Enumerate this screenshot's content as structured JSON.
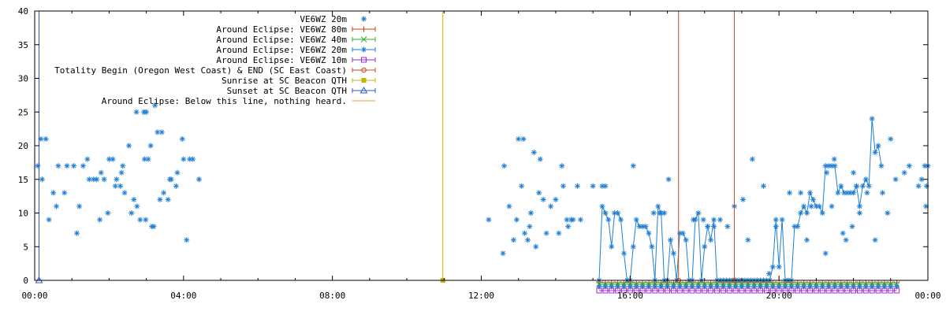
{
  "chart_data": {
    "type": "scatter",
    "title": "",
    "xlabel": "",
    "ylabel": "",
    "xlim": [
      "00:00",
      "24:00"
    ],
    "ylim": [
      0,
      40
    ],
    "grid": false,
    "legend_placement": "top-center",
    "x_ticks": [
      "00:00",
      "04:00",
      "08:00",
      "12:00",
      "16:00",
      "20:00",
      "00:00"
    ],
    "y_ticks": [
      "0",
      "5",
      "10",
      "15",
      "20",
      "25",
      "30",
      "35",
      "40"
    ],
    "series": [
      {
        "name": "VE6WZ 20m",
        "style": "points",
        "marker": "star",
        "color": "#1f7fd4",
        "points": [
          [
            "00:05",
            17
          ],
          [
            "00:10",
            21
          ],
          [
            "00:12",
            15
          ],
          [
            "00:18",
            21
          ],
          [
            "00:23",
            9
          ],
          [
            "00:30",
            13
          ],
          [
            "00:35",
            11
          ],
          [
            "00:38",
            17
          ],
          [
            "00:48",
            13
          ],
          [
            "00:52",
            17
          ],
          [
            "01:03",
            17
          ],
          [
            "01:08",
            7
          ],
          [
            "01:12",
            11
          ],
          [
            "01:18",
            17
          ],
          [
            "01:25",
            18
          ],
          [
            "01:28",
            15
          ],
          [
            "01:35",
            15
          ],
          [
            "01:40",
            15
          ],
          [
            "01:45",
            9
          ],
          [
            "01:47",
            16
          ],
          [
            "01:52",
            15
          ],
          [
            "01:58",
            10
          ],
          [
            "02:00",
            18
          ],
          [
            "02:06",
            18
          ],
          [
            "02:10",
            14
          ],
          [
            "02:12",
            15
          ],
          [
            "02:18",
            14
          ],
          [
            "02:20",
            16
          ],
          [
            "02:22",
            17
          ],
          [
            "02:25",
            13
          ],
          [
            "02:32",
            20
          ],
          [
            "02:36",
            10
          ],
          [
            "02:40",
            12
          ],
          [
            "02:44",
            25
          ],
          [
            "02:45",
            11
          ],
          [
            "02:50",
            9
          ],
          [
            "02:56",
            25
          ],
          [
            "02:57",
            18
          ],
          [
            "02:59",
            9
          ],
          [
            "03:00",
            25
          ],
          [
            "03:03",
            18
          ],
          [
            "03:07",
            20
          ],
          [
            "03:09",
            8
          ],
          [
            "03:12",
            8
          ],
          [
            "03:14",
            26
          ],
          [
            "03:18",
            22
          ],
          [
            "03:22",
            12
          ],
          [
            "03:25",
            22
          ],
          [
            "03:28",
            13
          ],
          [
            "03:35",
            12
          ],
          [
            "03:38",
            15
          ],
          [
            "03:40",
            15
          ],
          [
            "03:48",
            14
          ],
          [
            "03:50",
            16
          ],
          [
            "03:58",
            21
          ],
          [
            "04:00",
            18
          ],
          [
            "04:05",
            6
          ],
          [
            "04:10",
            18
          ],
          [
            "04:15",
            18
          ],
          [
            "04:25",
            15
          ],
          [
            "12:12",
            9
          ],
          [
            "12:35",
            4
          ],
          [
            "12:37",
            17
          ],
          [
            "12:45",
            11
          ],
          [
            "12:52",
            6
          ],
          [
            "12:57",
            9
          ],
          [
            "13:00",
            21
          ],
          [
            "13:05",
            14
          ],
          [
            "13:08",
            21
          ],
          [
            "13:10",
            7
          ],
          [
            "13:15",
            6
          ],
          [
            "13:18",
            8
          ],
          [
            "13:20",
            10
          ],
          [
            "13:25",
            19
          ],
          [
            "13:28",
            5
          ],
          [
            "13:33",
            13
          ],
          [
            "13:35",
            18
          ],
          [
            "13:40",
            12
          ],
          [
            "13:45",
            7
          ],
          [
            "13:52",
            11
          ],
          [
            "14:00",
            12
          ],
          [
            "14:05",
            7
          ],
          [
            "14:10",
            17
          ],
          [
            "14:12",
            14
          ],
          [
            "14:18",
            9
          ],
          [
            "14:20",
            8
          ],
          [
            "14:25",
            9
          ],
          [
            "14:28",
            9
          ],
          [
            "14:35",
            14
          ],
          [
            "14:40",
            9
          ],
          [
            "15:00",
            14
          ],
          [
            "15:15",
            14
          ],
          [
            "15:20",
            14
          ],
          [
            "16:05",
            17
          ],
          [
            "16:38",
            10
          ],
          [
            "16:48",
            10
          ],
          [
            "16:55",
            10
          ],
          [
            "17:02",
            15
          ],
          [
            "17:42",
            9
          ],
          [
            "17:58",
            9
          ],
          [
            "18:05",
            8
          ],
          [
            "18:15",
            8
          ],
          [
            "18:25",
            9
          ],
          [
            "18:37",
            8
          ],
          [
            "18:48",
            11
          ],
          [
            "19:02",
            12
          ],
          [
            "19:10",
            6
          ],
          [
            "19:17",
            18
          ],
          [
            "19:35",
            14
          ],
          [
            "19:44",
            1
          ],
          [
            "19:55",
            8
          ],
          [
            "20:17",
            13
          ],
          [
            "20:35",
            13
          ],
          [
            "20:45",
            6
          ],
          [
            "20:52",
            11
          ],
          [
            "21:15",
            4
          ],
          [
            "21:17",
            16
          ],
          [
            "21:25",
            11
          ],
          [
            "21:29",
            18
          ],
          [
            "21:43",
            7
          ],
          [
            "21:48",
            6
          ],
          [
            "21:58",
            8
          ],
          [
            "22:00",
            16
          ],
          [
            "22:05",
            14
          ],
          [
            "22:10",
            10
          ],
          [
            "22:22",
            13
          ],
          [
            "22:35",
            6
          ],
          [
            "22:47",
            13
          ],
          [
            "22:55",
            10
          ],
          [
            "23:00",
            21
          ],
          [
            "23:08",
            15
          ],
          [
            "23:22",
            16
          ],
          [
            "23:30",
            17
          ],
          [
            "23:45",
            14
          ],
          [
            "23:50",
            15
          ],
          [
            "23:55",
            17
          ],
          [
            "23:57",
            11
          ],
          [
            "23:58",
            14
          ],
          [
            "24:00",
            17
          ]
        ]
      },
      {
        "name": "Around Eclipse: VE6WZ 80m",
        "style": "linespoints",
        "marker": "plus",
        "color": "#d33b1a",
        "points": []
      },
      {
        "name": "Around Eclipse: VE6WZ 40m",
        "style": "linespoints",
        "marker": "cross",
        "color": "#29b13a",
        "points": []
      },
      {
        "name": "Around Eclipse: VE6WZ 20m",
        "style": "linespoints",
        "marker": "star",
        "color": "#1f7fd4",
        "points": [
          [
            "15:10",
            0
          ],
          [
            "15:15",
            11
          ],
          [
            "15:20",
            10
          ],
          [
            "15:25",
            9
          ],
          [
            "15:30",
            5
          ],
          [
            "15:35",
            10
          ],
          [
            "15:40",
            10
          ],
          [
            "15:45",
            9
          ],
          [
            "15:50",
            4
          ],
          [
            "15:55",
            0
          ],
          [
            "16:00",
            0
          ],
          [
            "16:05",
            5
          ],
          [
            "16:10",
            9
          ],
          [
            "16:15",
            8
          ],
          [
            "16:20",
            8
          ],
          [
            "16:25",
            8
          ],
          [
            "16:30",
            7
          ],
          [
            "16:35",
            5
          ],
          [
            "16:40",
            0
          ],
          [
            "16:45",
            11
          ],
          [
            "16:50",
            10
          ],
          [
            "16:55",
            0
          ],
          [
            "17:00",
            0
          ],
          [
            "17:05",
            6
          ],
          [
            "17:10",
            4
          ],
          [
            "17:15",
            0
          ],
          [
            "17:20",
            7
          ],
          [
            "17:25",
            7
          ],
          [
            "17:30",
            6
          ],
          [
            "17:35",
            0
          ],
          [
            "17:40",
            0
          ],
          [
            "17:45",
            9
          ],
          [
            "17:50",
            10
          ],
          [
            "17:55",
            0
          ],
          [
            "18:00",
            5
          ],
          [
            "18:05",
            8
          ],
          [
            "18:10",
            6
          ],
          [
            "18:15",
            9
          ],
          [
            "18:20",
            0
          ],
          [
            "18:25",
            0
          ],
          [
            "18:30",
            0
          ],
          [
            "18:35",
            0
          ],
          [
            "18:40",
            0
          ],
          [
            "18:45",
            0
          ],
          [
            "18:50",
            0
          ],
          [
            "18:55",
            0
          ],
          [
            "19:00",
            0
          ],
          [
            "19:05",
            0
          ],
          [
            "19:10",
            0
          ],
          [
            "19:15",
            0
          ],
          [
            "19:20",
            0
          ],
          [
            "19:25",
            0
          ],
          [
            "19:30",
            0
          ],
          [
            "19:35",
            0
          ],
          [
            "19:40",
            0
          ],
          [
            "19:45",
            0
          ],
          [
            "19:50",
            2
          ],
          [
            "19:55",
            9
          ],
          [
            "20:00",
            2
          ],
          [
            "20:05",
            9
          ],
          [
            "20:10",
            0
          ],
          [
            "20:15",
            0
          ],
          [
            "20:20",
            0
          ],
          [
            "20:25",
            8
          ],
          [
            "20:30",
            8
          ],
          [
            "20:35",
            10
          ],
          [
            "20:40",
            11
          ],
          [
            "20:45",
            10
          ],
          [
            "20:50",
            13
          ],
          [
            "20:55",
            12
          ],
          [
            "21:00",
            11
          ],
          [
            "21:05",
            11
          ],
          [
            "21:10",
            10
          ],
          [
            "21:15",
            17
          ],
          [
            "21:20",
            17
          ],
          [
            "21:25",
            17
          ],
          [
            "21:30",
            17
          ],
          [
            "21:35",
            13
          ],
          [
            "21:40",
            14
          ],
          [
            "21:45",
            13
          ],
          [
            "21:50",
            13
          ],
          [
            "21:55",
            13
          ],
          [
            "22:00",
            13
          ],
          [
            "22:05",
            14
          ],
          [
            "22:10",
            11
          ],
          [
            "22:15",
            14
          ],
          [
            "22:20",
            15
          ],
          [
            "22:25",
            14
          ],
          [
            "22:30",
            24
          ],
          [
            "22:35",
            19
          ],
          [
            "22:40",
            20
          ],
          [
            "22:45",
            17
          ]
        ]
      },
      {
        "name": "Around Eclipse: VE6WZ 10m",
        "style": "linespoints",
        "marker": "square",
        "color": "#a02bd0",
        "points": []
      },
      {
        "name": "Totality Begin (Oregon West Coast) & END (SC East Coast)",
        "style": "impulse",
        "marker": "circle",
        "color": "#c0501e",
        "points": [
          [
            "17:18",
            40
          ],
          [
            "18:48",
            40
          ]
        ]
      },
      {
        "name": "Sunrise at SC Beacon QTH",
        "style": "impulse",
        "marker": "filled-square",
        "color": "#c8b400",
        "points": [
          [
            "10:58",
            40
          ]
        ]
      },
      {
        "name": "Sunset at SC Beacon QTH",
        "style": "impulse",
        "marker": "triangle",
        "color": "#2a57c8",
        "points": [
          [
            "00:07",
            40
          ]
        ]
      },
      {
        "name": "Around Eclipse: Below this line, nothing heard.",
        "style": "line",
        "marker": "none",
        "color": "#e0a020",
        "points": [
          [
            "00:00",
            0
          ],
          [
            "24:00",
            0
          ]
        ]
      }
    ]
  }
}
